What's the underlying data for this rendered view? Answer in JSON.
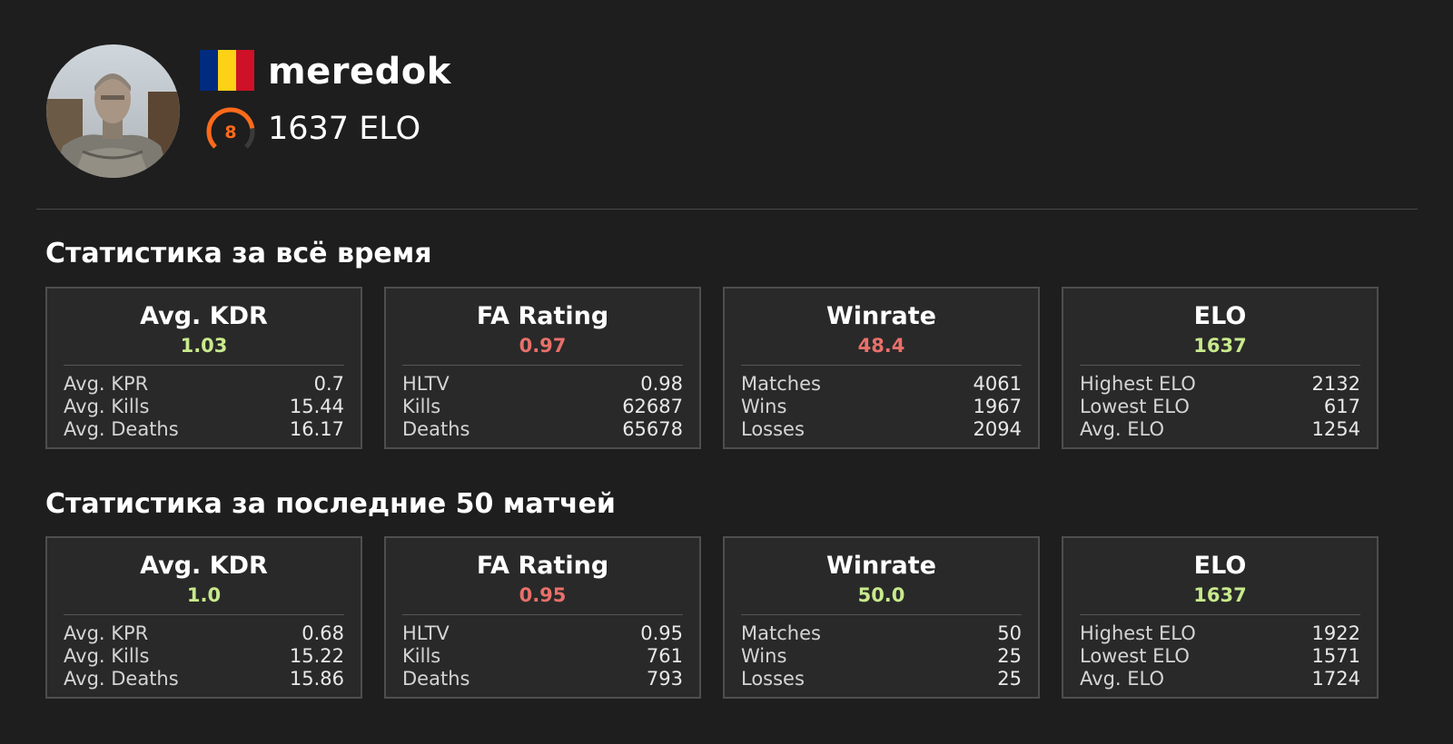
{
  "profile": {
    "nickname": "meredok",
    "elo_text": "1637 ELO",
    "level": "8",
    "level_fraction": 0.8,
    "level_color": "#ff6a1a",
    "flag_colors": [
      "#002b7f",
      "#fcd116",
      "#ce1126"
    ]
  },
  "colors": {
    "good": "#c8ea8c",
    "bad": "#e8706a"
  },
  "sections": [
    {
      "title": "Статистика за всё время",
      "cards": [
        {
          "title": "Avg. KDR",
          "value": "1.03",
          "value_tone": "good",
          "rows": [
            {
              "label": "Avg. KPR",
              "value": "0.7"
            },
            {
              "label": "Avg. Kills",
              "value": "15.44"
            },
            {
              "label": "Avg. Deaths",
              "value": "16.17"
            }
          ]
        },
        {
          "title": "FA Rating",
          "value": "0.97",
          "value_tone": "bad",
          "rows": [
            {
              "label": "HLTV",
              "value": "0.98"
            },
            {
              "label": "Kills",
              "value": "62687"
            },
            {
              "label": "Deaths",
              "value": "65678"
            }
          ]
        },
        {
          "title": "Winrate",
          "value": "48.4",
          "value_tone": "bad",
          "rows": [
            {
              "label": "Matches",
              "value": "4061"
            },
            {
              "label": "Wins",
              "value": "1967"
            },
            {
              "label": "Losses",
              "value": "2094"
            }
          ]
        },
        {
          "title": "ELO",
          "value": "1637",
          "value_tone": "good",
          "rows": [
            {
              "label": "Highest ELO",
              "value": "2132"
            },
            {
              "label": "Lowest ELO",
              "value": "617"
            },
            {
              "label": "Avg. ELO",
              "value": "1254"
            }
          ]
        }
      ]
    },
    {
      "title": "Статистика за последние 50 матчей",
      "cards": [
        {
          "title": "Avg. KDR",
          "value": "1.0",
          "value_tone": "good",
          "rows": [
            {
              "label": "Avg. KPR",
              "value": "0.68"
            },
            {
              "label": "Avg. Kills",
              "value": "15.22"
            },
            {
              "label": "Avg. Deaths",
              "value": "15.86"
            }
          ]
        },
        {
          "title": "FA Rating",
          "value": "0.95",
          "value_tone": "bad",
          "rows": [
            {
              "label": "HLTV",
              "value": "0.95"
            },
            {
              "label": "Kills",
              "value": "761"
            },
            {
              "label": "Deaths",
              "value": "793"
            }
          ]
        },
        {
          "title": "Winrate",
          "value": "50.0",
          "value_tone": "good",
          "rows": [
            {
              "label": "Matches",
              "value": "50"
            },
            {
              "label": "Wins",
              "value": "25"
            },
            {
              "label": "Losses",
              "value": "25"
            }
          ]
        },
        {
          "title": "ELO",
          "value": "1637",
          "value_tone": "good",
          "rows": [
            {
              "label": "Highest ELO",
              "value": "1922"
            },
            {
              "label": "Lowest ELO",
              "value": "1571"
            },
            {
              "label": "Avg. ELO",
              "value": "1724"
            }
          ]
        }
      ]
    }
  ]
}
